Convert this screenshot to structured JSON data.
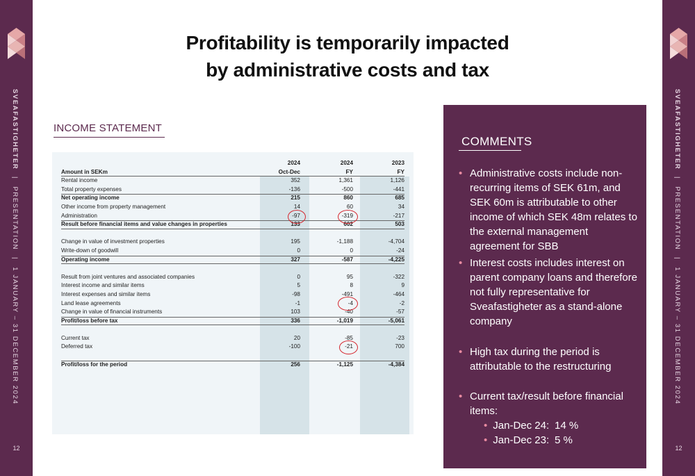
{
  "sidebar": {
    "company": "SVEAFASTIGHETER",
    "sep": "|",
    "doc_type": "PRESENTATION",
    "period": "1 JANUARY – 31 DECEMBER 2024",
    "page": "12"
  },
  "slide": {
    "title_line1": "Profitability is temporarily impacted",
    "title_line2": "by administrative costs and tax"
  },
  "income_statement": {
    "heading": "INCOME STATEMENT",
    "header": {
      "label": "Amount in SEKm",
      "c1_year": "2024",
      "c1_period": "Oct-Dec",
      "c2_year": "2024",
      "c2_period": "FY",
      "c3_year": "2023",
      "c3_period": "FY"
    },
    "rows": [
      {
        "label": "Rental income",
        "v1": "352",
        "v2": "1,361",
        "v3": "1,126"
      },
      {
        "label": "Total property expenses",
        "v1": "-136",
        "v2": "-500",
        "v3": "-441"
      },
      {
        "label": "Net operating income",
        "v1": "215",
        "v2": "860",
        "v3": "685"
      },
      {
        "label": "Other income from property management",
        "v1": "14",
        "v2": "60",
        "v3": "34"
      },
      {
        "label": "Administration",
        "v1": "-97",
        "v2": "-319",
        "v3": "-217"
      },
      {
        "label": "Result before financial items and value changes in properties",
        "v1": "133",
        "v2": "602",
        "v3": "503"
      },
      {
        "label": "Change in value of investment properties",
        "v1": "195",
        "v2": "-1,188",
        "v3": "-4,704"
      },
      {
        "label": "Write-down of goodwill",
        "v1": "0",
        "v2": "0",
        "v3": "-24"
      },
      {
        "label": "Operating income",
        "v1": "327",
        "v2": "-587",
        "v3": "-4,225"
      },
      {
        "label": "Result from joint ventures and associated companies",
        "v1": "0",
        "v2": "95",
        "v3": "-322"
      },
      {
        "label": "Interest income and similar items",
        "v1": "5",
        "v2": "8",
        "v3": "9"
      },
      {
        "label": "Interest expenses and similar items",
        "v1": "-98",
        "v2": "-491",
        "v3": "-464"
      },
      {
        "label": "Land lease agreements",
        "v1": "-1",
        "v2": "-4",
        "v3": "-2"
      },
      {
        "label": "Change in value of financial instruments",
        "v1": "103",
        "v2": "-40",
        "v3": "-57"
      },
      {
        "label": "Profit/loss before tax",
        "v1": "336",
        "v2": "-1,019",
        "v3": "-5,061"
      },
      {
        "label": "Current tax",
        "v1": "20",
        "v2": "-85",
        "v3": "-23"
      },
      {
        "label": "Deferred tax",
        "v1": "-100",
        "v2": "-21",
        "v3": "700"
      },
      {
        "label": "Profit/loss for the period",
        "v1": "256",
        "v2": "-1,125",
        "v3": "-4,384"
      }
    ]
  },
  "comments": {
    "heading": "COMMENTS",
    "bullets": [
      "Administrative costs include non-recurring items of SEK 61m, and SEK 60m is attributable to other income of which SEK 48m relates to the external management agreement for SBB",
      "Interest costs includes interest on parent company loans and therefore not fully representative for Sveafastigheter as a stand-alone company",
      "High tax during the period is attributable to the restructuring",
      "Current tax/result before financial items:"
    ],
    "sub_items": [
      {
        "label": "Jan-Dec 24:",
        "value": "14 %"
      },
      {
        "label": "Jan-Dec 23:",
        "value": "5 %"
      }
    ]
  }
}
